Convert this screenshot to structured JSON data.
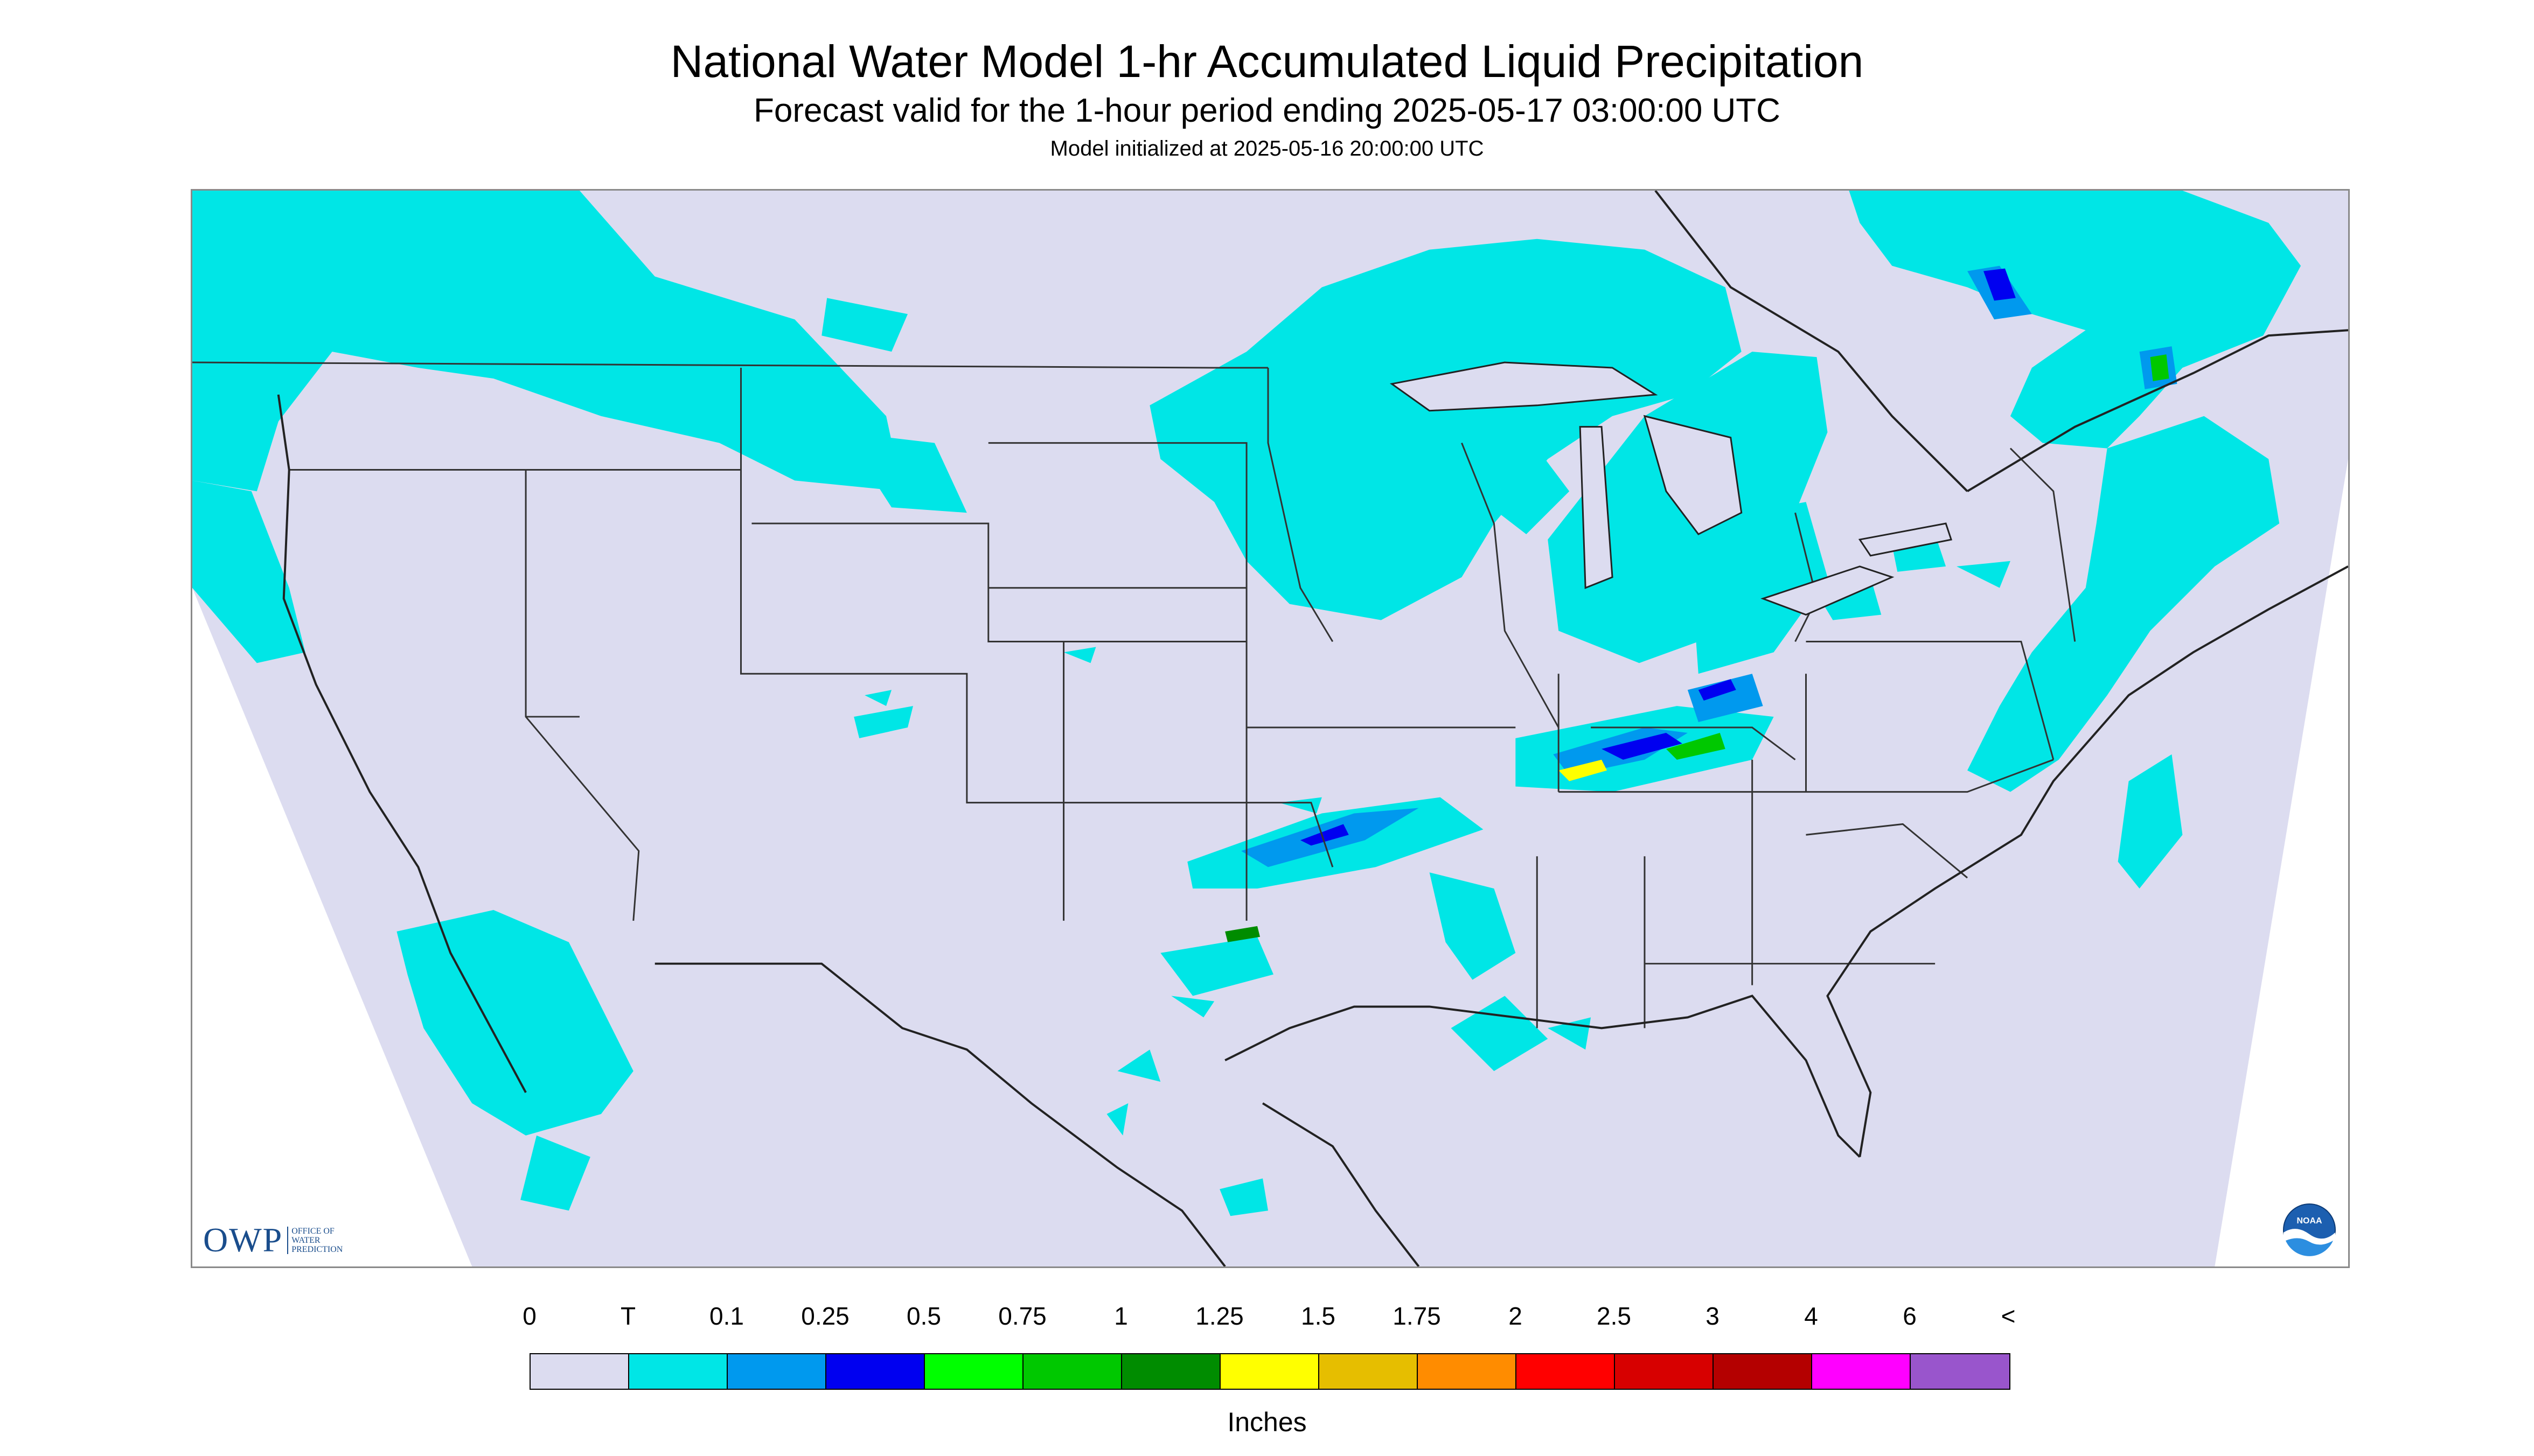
{
  "title": "National Water Model 1-hr Accumulated Liquid Precipitation",
  "subtitle": "Forecast valid for the 1-hour period ending 2025-05-17 03:00:00 UTC",
  "init_text": "Model initialized at 2025-05-16 20:00:00 UTC",
  "logos": {
    "owp_text": "OWP",
    "owp_sub_1": "OFFICE OF",
    "owp_sub_2": "WATER",
    "owp_sub_3": "PREDICTION",
    "noaa_text": "NOAA"
  },
  "legend": {
    "units": "Inches",
    "ticks": [
      "0",
      "T",
      "0.1",
      "0.25",
      "0.5",
      "0.75",
      "1",
      "1.25",
      "1.5",
      "1.75",
      "2",
      "2.5",
      "3",
      "4",
      "6",
      "<"
    ],
    "colors": [
      "#dcdcf0",
      "#00e6e6",
      "#0099ee",
      "#0000f0",
      "#00ff00",
      "#00c800",
      "#008c00",
      "#ffff00",
      "#e6be00",
      "#ff8c00",
      "#ff0000",
      "#d70000",
      "#b40000",
      "#ff00ff",
      "#9955cc"
    ]
  },
  "colors": {
    "background_field": "#dcdcf0",
    "trace_precip": "#00e6e6",
    "boundaries": "#333333"
  }
}
